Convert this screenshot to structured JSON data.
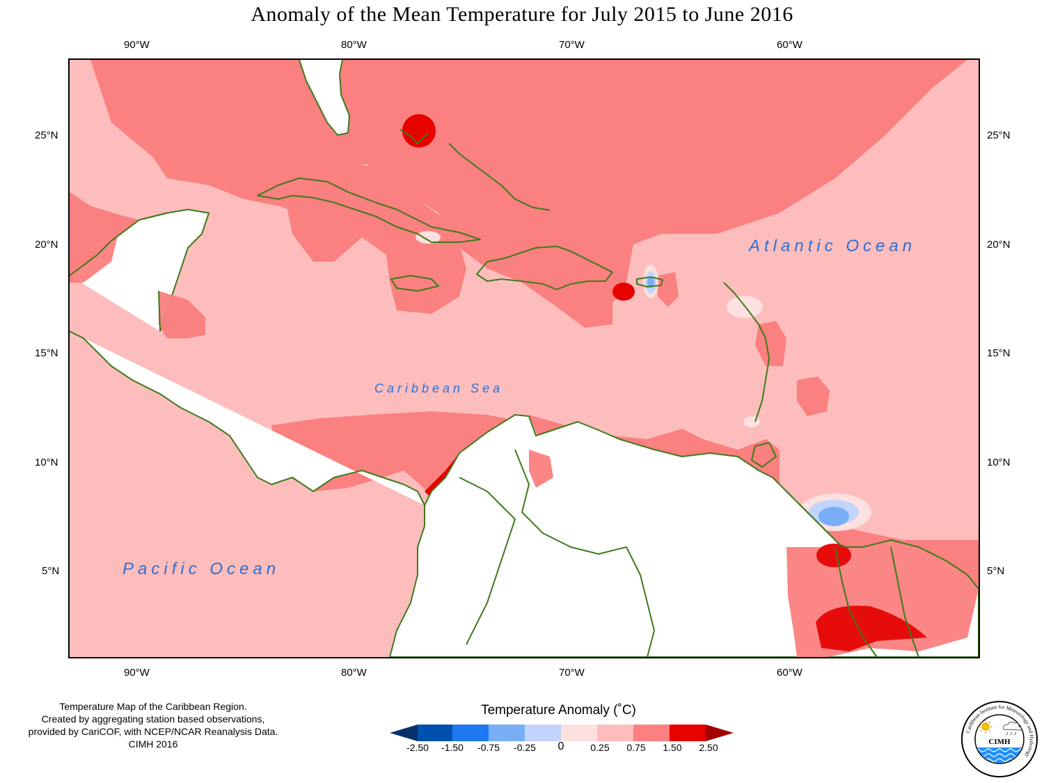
{
  "title": "Anomaly of the Mean Temperature for July 2015 to June 2016",
  "axes": {
    "top_lon_labels": [
      "90°W",
      "80°W",
      "70°W",
      "60°W"
    ],
    "bottom_lon_labels": [
      "90°W",
      "80°W",
      "70°W",
      "60°W"
    ],
    "left_lat_labels": [
      "25°N",
      "20°N",
      "15°N",
      "10°N",
      "5°N"
    ],
    "right_lat_labels": [
      "25°N",
      "20°N",
      "15°N",
      "10°N",
      "5°N"
    ]
  },
  "map": {
    "atlantic_label": "Atlantic Ocean",
    "caribbean_label": "Caribbean Sea",
    "pacific_label": "Pacific Ocean",
    "lon_range": [
      -93.3,
      -51.3
    ],
    "lat_range": [
      1.0,
      28.5
    ]
  },
  "note": {
    "line1": "Temperature Map of the Caribbean Region.",
    "line2": "Created by aggregating station based observations,",
    "line3": "provided by CariCOF, with NCEP/NCAR Reanalysis Data.",
    "line4": "CIMH 2016"
  },
  "legend": {
    "title": "Temperature Anomaly (˚C)",
    "labels": [
      "-2.50",
      "-1.50",
      "-0.75",
      "-0.25",
      "0",
      "0.25",
      "0.75",
      "1.50",
      "2.50"
    ],
    "colors": [
      "#08306b",
      "#0050b0",
      "#1e78f0",
      "#78aef5",
      "#c2d4fb",
      "#fde0e0",
      "#fdbdbd",
      "#fb8080",
      "#e60000",
      "#a50000"
    ]
  },
  "logo": {
    "name": "CIMH",
    "ring_text": "Caribbean Institute for Meteorology and Hydrology"
  },
  "colors": {
    "coastline": "#3d7a1a",
    "ocean_text": "#2e6fd1",
    "base_shade": "#fdbdbd",
    "warm_shade": "#fb8080",
    "hot_shade": "#e60000",
    "cool_shade": "#78aef5"
  }
}
